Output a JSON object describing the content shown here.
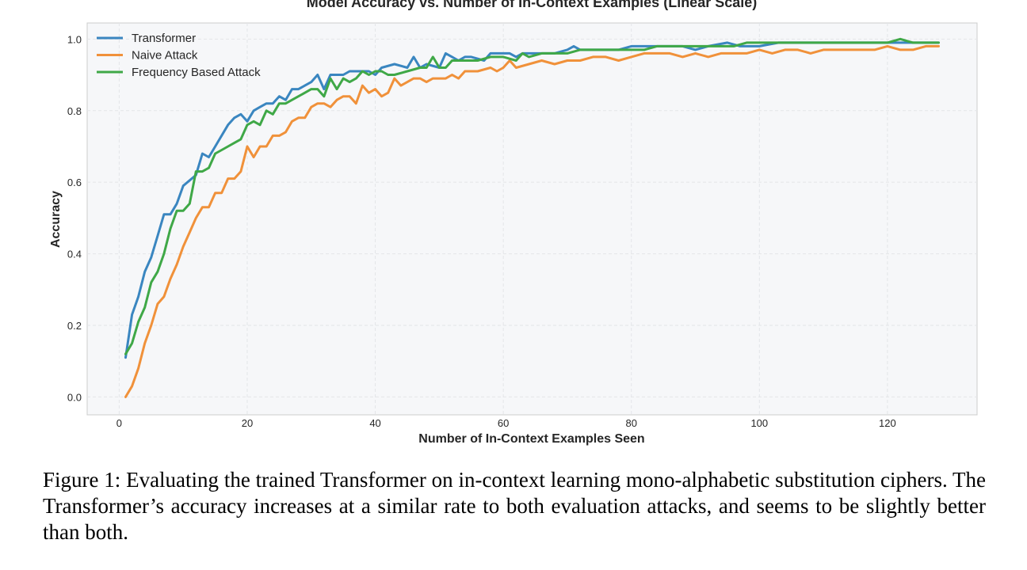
{
  "chart_data": {
    "type": "line",
    "title": "Model Accuracy vs. Number of In-Context Examples (Linear Scale)",
    "xlabel": "Number of In-Context Examples Seen",
    "ylabel": "Accuracy",
    "xlim": [
      -5,
      134
    ],
    "ylim": [
      -0.05,
      1.045
    ],
    "xticks": [
      0,
      20,
      40,
      60,
      80,
      100,
      120
    ],
    "xtick_labels": [
      "0",
      "20",
      "40",
      "60",
      "80",
      "100",
      "120"
    ],
    "yticks": [
      0.0,
      0.2,
      0.4,
      0.6,
      0.8,
      1.0
    ],
    "ytick_labels": [
      "0.0",
      "0.2",
      "0.4",
      "0.6",
      "0.8",
      "1.0"
    ],
    "grid": true,
    "legend_position": "top-left",
    "series": [
      {
        "name": "Transformer",
        "color": "#3a86c0",
        "points": [
          [
            1,
            0.11
          ],
          [
            2,
            0.23
          ],
          [
            3,
            0.28
          ],
          [
            4,
            0.35
          ],
          [
            5,
            0.39
          ],
          [
            6,
            0.45
          ],
          [
            7,
            0.51
          ],
          [
            8,
            0.51
          ],
          [
            9,
            0.54
          ],
          [
            10,
            0.59
          ],
          [
            12,
            0.62
          ],
          [
            13,
            0.68
          ],
          [
            14,
            0.67
          ],
          [
            15,
            0.7
          ],
          [
            17,
            0.76
          ],
          [
            18,
            0.78
          ],
          [
            19,
            0.79
          ],
          [
            20,
            0.77
          ],
          [
            21,
            0.8
          ],
          [
            22,
            0.81
          ],
          [
            23,
            0.82
          ],
          [
            24,
            0.82
          ],
          [
            25,
            0.84
          ],
          [
            26,
            0.83
          ],
          [
            27,
            0.86
          ],
          [
            28,
            0.86
          ],
          [
            29,
            0.87
          ],
          [
            30,
            0.88
          ],
          [
            31,
            0.9
          ],
          [
            32,
            0.86
          ],
          [
            33,
            0.9
          ],
          [
            35,
            0.9
          ],
          [
            36,
            0.91
          ],
          [
            37,
            0.91
          ],
          [
            38,
            0.91
          ],
          [
            39,
            0.91
          ],
          [
            40,
            0.9
          ],
          [
            41,
            0.92
          ],
          [
            43,
            0.93
          ],
          [
            45,
            0.92
          ],
          [
            46,
            0.95
          ],
          [
            47,
            0.92
          ],
          [
            48,
            0.93
          ],
          [
            50,
            0.92
          ],
          [
            51,
            0.96
          ],
          [
            52,
            0.95
          ],
          [
            53,
            0.94
          ],
          [
            54,
            0.95
          ],
          [
            55,
            0.95
          ],
          [
            57,
            0.94
          ],
          [
            58,
            0.96
          ],
          [
            60,
            0.96
          ],
          [
            61,
            0.96
          ],
          [
            62,
            0.95
          ],
          [
            63,
            0.96
          ],
          [
            65,
            0.96
          ],
          [
            67,
            0.96
          ],
          [
            68,
            0.96
          ],
          [
            70,
            0.97
          ],
          [
            71,
            0.98
          ],
          [
            72,
            0.97
          ],
          [
            74,
            0.97
          ],
          [
            76,
            0.97
          ],
          [
            78,
            0.97
          ],
          [
            80,
            0.98
          ],
          [
            82,
            0.98
          ],
          [
            84,
            0.98
          ],
          [
            86,
            0.98
          ],
          [
            88,
            0.98
          ],
          [
            90,
            0.97
          ],
          [
            92,
            0.98
          ],
          [
            95,
            0.99
          ],
          [
            97,
            0.98
          ],
          [
            100,
            0.98
          ],
          [
            103,
            0.99
          ],
          [
            106,
            0.99
          ],
          [
            110,
            0.99
          ],
          [
            112,
            0.99
          ],
          [
            114,
            0.99
          ],
          [
            116,
            0.99
          ],
          [
            118,
            0.99
          ],
          [
            120,
            0.99
          ],
          [
            122,
            0.99
          ],
          [
            124,
            0.99
          ],
          [
            126,
            0.99
          ],
          [
            128,
            0.99
          ]
        ]
      },
      {
        "name": "Naive Attack",
        "color": "#f0913a",
        "points": [
          [
            1,
            0.0
          ],
          [
            2,
            0.03
          ],
          [
            3,
            0.08
          ],
          [
            4,
            0.15
          ],
          [
            5,
            0.2
          ],
          [
            6,
            0.26
          ],
          [
            7,
            0.28
          ],
          [
            8,
            0.33
          ],
          [
            9,
            0.37
          ],
          [
            10,
            0.42
          ],
          [
            11,
            0.46
          ],
          [
            12,
            0.5
          ],
          [
            13,
            0.53
          ],
          [
            14,
            0.53
          ],
          [
            15,
            0.57
          ],
          [
            16,
            0.57
          ],
          [
            17,
            0.61
          ],
          [
            18,
            0.61
          ],
          [
            19,
            0.63
          ],
          [
            20,
            0.7
          ],
          [
            21,
            0.67
          ],
          [
            22,
            0.7
          ],
          [
            23,
            0.7
          ],
          [
            24,
            0.73
          ],
          [
            25,
            0.73
          ],
          [
            26,
            0.74
          ],
          [
            27,
            0.77
          ],
          [
            28,
            0.78
          ],
          [
            29,
            0.78
          ],
          [
            30,
            0.81
          ],
          [
            31,
            0.82
          ],
          [
            32,
            0.82
          ],
          [
            33,
            0.81
          ],
          [
            34,
            0.83
          ],
          [
            35,
            0.84
          ],
          [
            36,
            0.84
          ],
          [
            37,
            0.82
          ],
          [
            38,
            0.87
          ],
          [
            39,
            0.85
          ],
          [
            40,
            0.86
          ],
          [
            41,
            0.84
          ],
          [
            42,
            0.85
          ],
          [
            43,
            0.89
          ],
          [
            44,
            0.87
          ],
          [
            45,
            0.88
          ],
          [
            46,
            0.89
          ],
          [
            47,
            0.89
          ],
          [
            48,
            0.88
          ],
          [
            49,
            0.89
          ],
          [
            50,
            0.89
          ],
          [
            51,
            0.89
          ],
          [
            52,
            0.9
          ],
          [
            53,
            0.89
          ],
          [
            54,
            0.91
          ],
          [
            56,
            0.91
          ],
          [
            58,
            0.92
          ],
          [
            59,
            0.91
          ],
          [
            60,
            0.92
          ],
          [
            61,
            0.94
          ],
          [
            62,
            0.92
          ],
          [
            64,
            0.93
          ],
          [
            66,
            0.94
          ],
          [
            68,
            0.93
          ],
          [
            70,
            0.94
          ],
          [
            72,
            0.94
          ],
          [
            74,
            0.95
          ],
          [
            76,
            0.95
          ],
          [
            78,
            0.94
          ],
          [
            80,
            0.95
          ],
          [
            82,
            0.96
          ],
          [
            84,
            0.96
          ],
          [
            86,
            0.96
          ],
          [
            88,
            0.95
          ],
          [
            90,
            0.96
          ],
          [
            92,
            0.95
          ],
          [
            94,
            0.96
          ],
          [
            96,
            0.96
          ],
          [
            98,
            0.96
          ],
          [
            100,
            0.97
          ],
          [
            102,
            0.96
          ],
          [
            104,
            0.97
          ],
          [
            106,
            0.97
          ],
          [
            108,
            0.96
          ],
          [
            110,
            0.97
          ],
          [
            112,
            0.97
          ],
          [
            114,
            0.97
          ],
          [
            116,
            0.97
          ],
          [
            118,
            0.97
          ],
          [
            120,
            0.98
          ],
          [
            122,
            0.97
          ],
          [
            124,
            0.97
          ],
          [
            126,
            0.98
          ],
          [
            128,
            0.98
          ]
        ]
      },
      {
        "name": "Frequency Based Attack",
        "color": "#3fa847",
        "points": [
          [
            1,
            0.12
          ],
          [
            2,
            0.15
          ],
          [
            3,
            0.21
          ],
          [
            4,
            0.25
          ],
          [
            5,
            0.32
          ],
          [
            6,
            0.35
          ],
          [
            7,
            0.4
          ],
          [
            8,
            0.47
          ],
          [
            9,
            0.52
          ],
          [
            10,
            0.52
          ],
          [
            11,
            0.54
          ],
          [
            12,
            0.63
          ],
          [
            13,
            0.63
          ],
          [
            14,
            0.64
          ],
          [
            15,
            0.68
          ],
          [
            16,
            0.69
          ],
          [
            17,
            0.7
          ],
          [
            18,
            0.71
          ],
          [
            19,
            0.72
          ],
          [
            20,
            0.76
          ],
          [
            21,
            0.77
          ],
          [
            22,
            0.76
          ],
          [
            23,
            0.8
          ],
          [
            24,
            0.79
          ],
          [
            25,
            0.82
          ],
          [
            26,
            0.82
          ],
          [
            27,
            0.83
          ],
          [
            28,
            0.84
          ],
          [
            29,
            0.85
          ],
          [
            30,
            0.86
          ],
          [
            31,
            0.86
          ],
          [
            32,
            0.84
          ],
          [
            33,
            0.89
          ],
          [
            34,
            0.86
          ],
          [
            35,
            0.89
          ],
          [
            36,
            0.88
          ],
          [
            37,
            0.89
          ],
          [
            38,
            0.91
          ],
          [
            39,
            0.9
          ],
          [
            40,
            0.91
          ],
          [
            41,
            0.91
          ],
          [
            42,
            0.9
          ],
          [
            43,
            0.9
          ],
          [
            45,
            0.91
          ],
          [
            47,
            0.92
          ],
          [
            48,
            0.92
          ],
          [
            49,
            0.95
          ],
          [
            50,
            0.92
          ],
          [
            51,
            0.92
          ],
          [
            52,
            0.94
          ],
          [
            54,
            0.94
          ],
          [
            56,
            0.94
          ],
          [
            58,
            0.95
          ],
          [
            60,
            0.95
          ],
          [
            62,
            0.94
          ],
          [
            63,
            0.96
          ],
          [
            64,
            0.95
          ],
          [
            66,
            0.96
          ],
          [
            68,
            0.96
          ],
          [
            70,
            0.96
          ],
          [
            72,
            0.97
          ],
          [
            74,
            0.97
          ],
          [
            76,
            0.97
          ],
          [
            78,
            0.97
          ],
          [
            80,
            0.97
          ],
          [
            82,
            0.97
          ],
          [
            84,
            0.98
          ],
          [
            86,
            0.98
          ],
          [
            88,
            0.98
          ],
          [
            90,
            0.98
          ],
          [
            92,
            0.98
          ],
          [
            94,
            0.98
          ],
          [
            96,
            0.98
          ],
          [
            98,
            0.99
          ],
          [
            100,
            0.99
          ],
          [
            102,
            0.99
          ],
          [
            104,
            0.99
          ],
          [
            106,
            0.99
          ],
          [
            108,
            0.99
          ],
          [
            110,
            0.99
          ],
          [
            112,
            0.99
          ],
          [
            114,
            0.99
          ],
          [
            116,
            0.99
          ],
          [
            118,
            0.99
          ],
          [
            120,
            0.99
          ],
          [
            122,
            1.0
          ],
          [
            124,
            0.99
          ],
          [
            126,
            0.99
          ],
          [
            128,
            0.99
          ]
        ]
      }
    ]
  },
  "caption": "Figure 1: Evaluating the trained Transformer on in-context learning mono-alphabetic substitution ciphers. The Transformer’s accuracy increases at a similar rate to both evaluation attacks, and seems to be slightly better than both."
}
